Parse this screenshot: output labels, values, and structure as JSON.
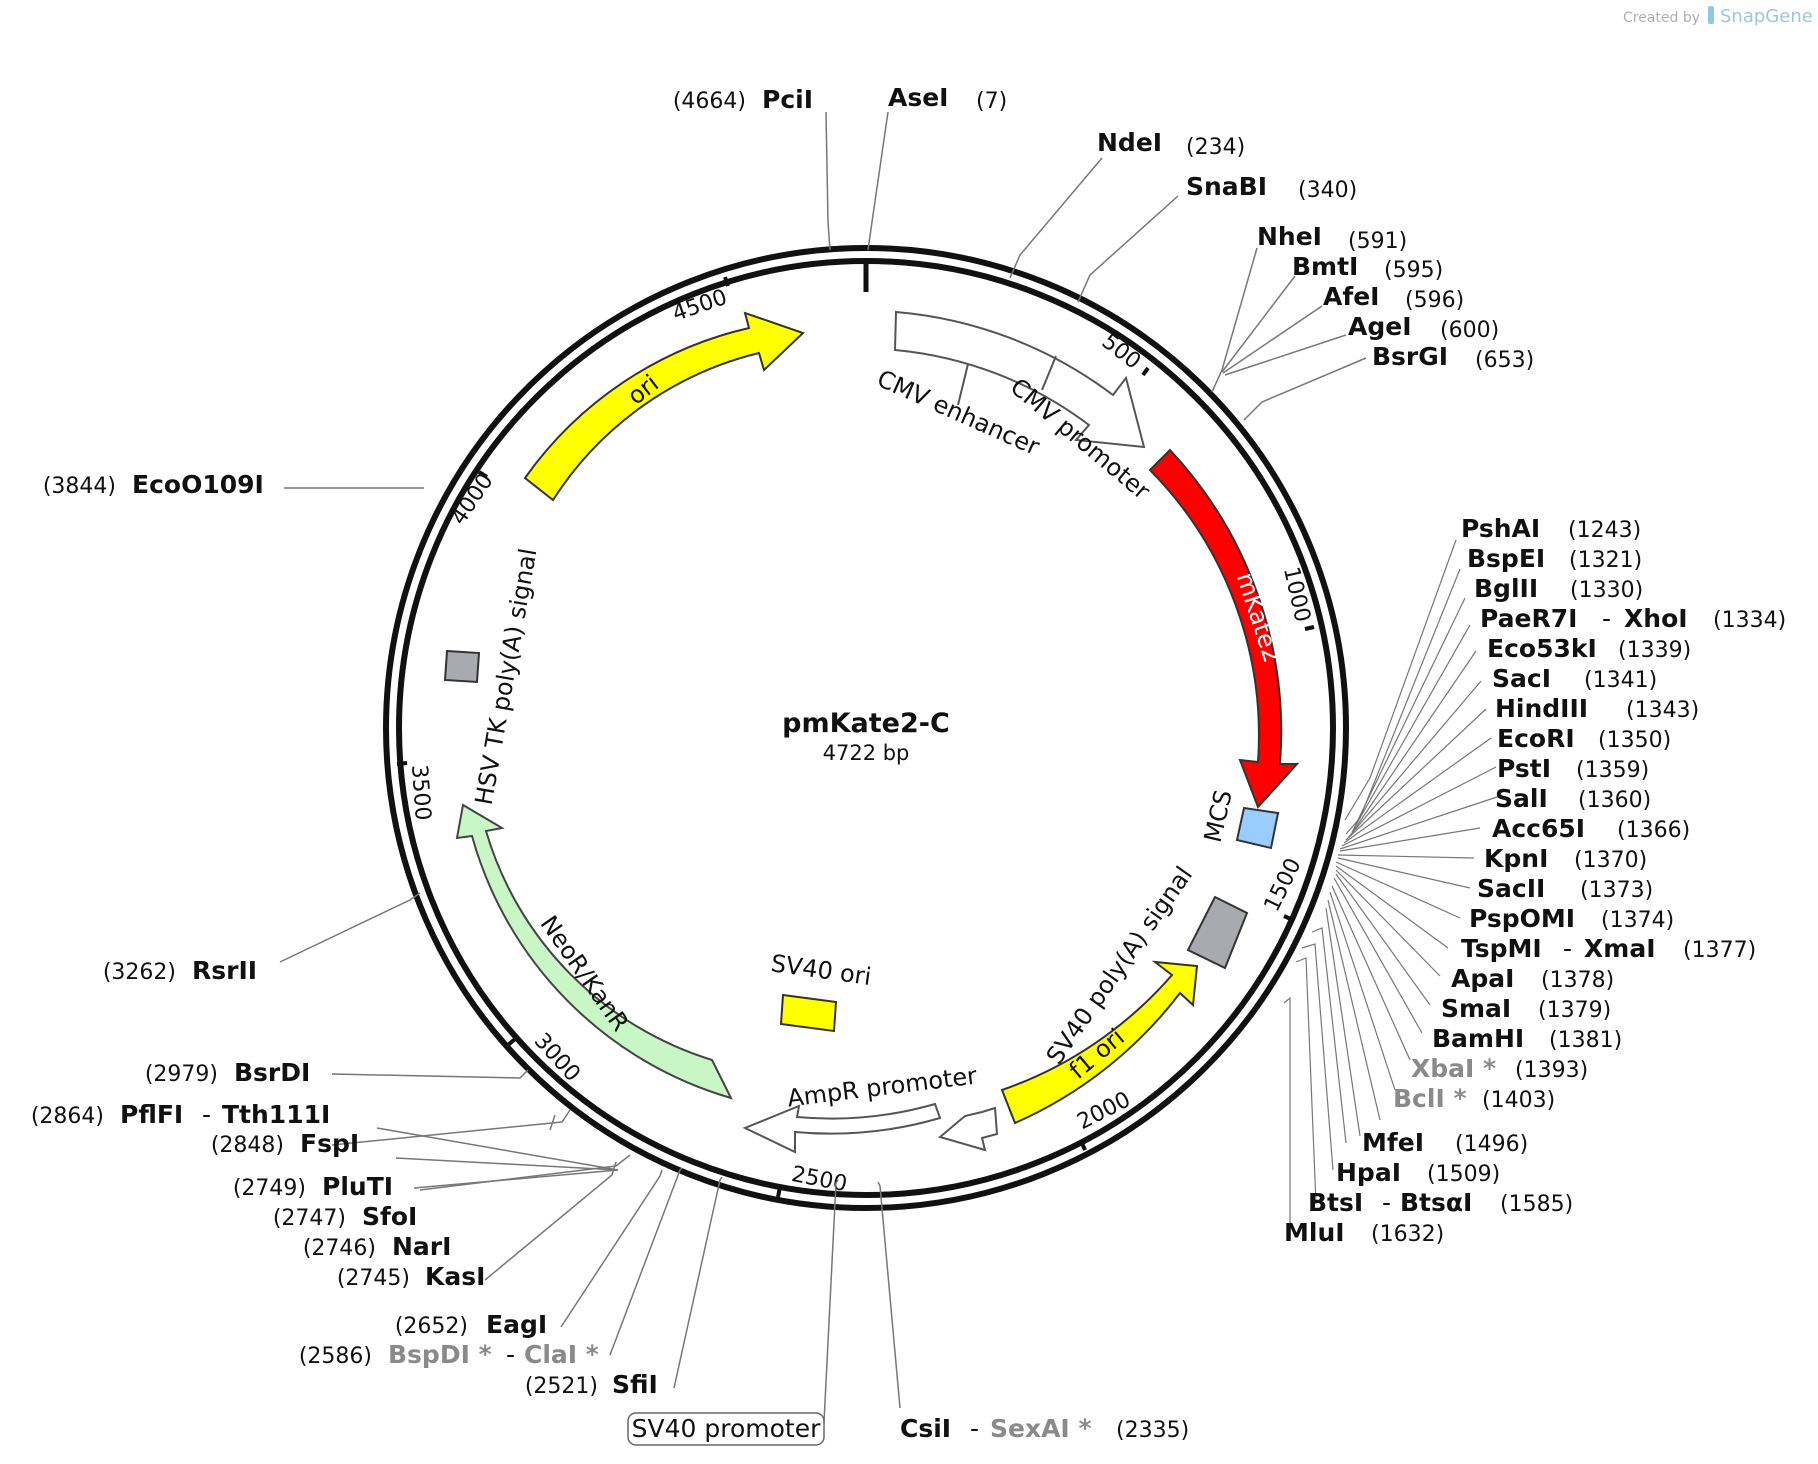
{
  "credit": {
    "prefix": "Created by",
    "brand": "SnapGene"
  },
  "plasmid": {
    "name": "pmKate2-C",
    "size_label": "4722 bp",
    "length_bp": 4722
  },
  "ticks": [
    "500",
    "1000",
    "1500",
    "2000",
    "2500",
    "3000",
    "3500",
    "4000",
    "4500"
  ],
  "features": [
    {
      "id": "cmv-enhancer",
      "label": "CMV enhancer",
      "color": "#ffffff"
    },
    {
      "id": "cmv-promoter",
      "label": "CMV promoter",
      "color": "#ffffff"
    },
    {
      "id": "mkate2",
      "label": "mKate2",
      "color": "#ff0000"
    },
    {
      "id": "mcs",
      "label": "MCS",
      "color": "#99ccff"
    },
    {
      "id": "sv40-polya",
      "label": "SV40 poly(A) signal",
      "color": "#a9a9b0"
    },
    {
      "id": "f1-ori",
      "label": "f1 ori",
      "color": "#ffff00"
    },
    {
      "id": "ampr-promoter",
      "label": "AmpR promoter",
      "color": "#ffffff"
    },
    {
      "id": "sv40-promoter",
      "label": "SV40 promoter",
      "color": "#ffffff"
    },
    {
      "id": "sv40-ori",
      "label": "SV40 ori",
      "color": "#ffff00"
    },
    {
      "id": "neor",
      "label": "NeoR/KanR",
      "color": "#c8f7c5"
    },
    {
      "id": "hsv-polya",
      "label": "HSV TK poly(A) signal",
      "color": "#a9a9b0"
    },
    {
      "id": "ori",
      "label": "ori",
      "color": "#ffff00"
    }
  ],
  "sites": [
    {
      "id": "pcii",
      "pos": "(4664)",
      "enzymes": [
        {
          "name": "PciI"
        }
      ]
    },
    {
      "id": "asei",
      "pos": "(7)",
      "enzymes": [
        {
          "name": "AseI"
        }
      ]
    },
    {
      "id": "ndei",
      "pos": "(234)",
      "enzymes": [
        {
          "name": "NdeI"
        }
      ]
    },
    {
      "id": "snabi",
      "pos": "(340)",
      "enzymes": [
        {
          "name": "SnaBI"
        }
      ]
    },
    {
      "id": "nhei",
      "pos": "(591)",
      "enzymes": [
        {
          "name": "NheI"
        }
      ]
    },
    {
      "id": "bmti",
      "pos": "(595)",
      "enzymes": [
        {
          "name": "BmtI"
        }
      ]
    },
    {
      "id": "afei",
      "pos": "(596)",
      "enzymes": [
        {
          "name": "AfeI"
        }
      ]
    },
    {
      "id": "agei",
      "pos": "(600)",
      "enzymes": [
        {
          "name": "AgeI"
        }
      ]
    },
    {
      "id": "bsrgi",
      "pos": "(653)",
      "enzymes": [
        {
          "name": "BsrGI"
        }
      ]
    },
    {
      "id": "pshai",
      "pos": "(1243)",
      "enzymes": [
        {
          "name": "PshAI"
        }
      ]
    },
    {
      "id": "bspei",
      "pos": "(1321)",
      "enzymes": [
        {
          "name": "BspEI"
        }
      ]
    },
    {
      "id": "bglii",
      "pos": "(1330)",
      "enzymes": [
        {
          "name": "BglII"
        }
      ]
    },
    {
      "id": "paer7i",
      "pos": "(1334)",
      "enzymes": [
        {
          "name": "PaeR7I"
        },
        {
          "name": "XhoI"
        }
      ]
    },
    {
      "id": "eco53ki",
      "pos": "(1339)",
      "enzymes": [
        {
          "name": "Eco53kI"
        }
      ]
    },
    {
      "id": "saci",
      "pos": "(1341)",
      "enzymes": [
        {
          "name": "SacI"
        }
      ]
    },
    {
      "id": "hindiii",
      "pos": "(1343)",
      "enzymes": [
        {
          "name": "HindIII"
        }
      ]
    },
    {
      "id": "ecori",
      "pos": "(1350)",
      "enzymes": [
        {
          "name": "EcoRI"
        }
      ]
    },
    {
      "id": "psti",
      "pos": "(1359)",
      "enzymes": [
        {
          "name": "PstI"
        }
      ]
    },
    {
      "id": "sali",
      "pos": "(1360)",
      "enzymes": [
        {
          "name": "SalI"
        }
      ]
    },
    {
      "id": "acc65i",
      "pos": "(1366)",
      "enzymes": [
        {
          "name": "Acc65I"
        }
      ]
    },
    {
      "id": "kpni",
      "pos": "(1370)",
      "enzymes": [
        {
          "name": "KpnI"
        }
      ]
    },
    {
      "id": "sacii",
      "pos": "(1373)",
      "enzymes": [
        {
          "name": "SacII"
        }
      ]
    },
    {
      "id": "pspomi",
      "pos": "(1374)",
      "enzymes": [
        {
          "name": "PspOMI"
        }
      ]
    },
    {
      "id": "tspmi",
      "pos": "(1377)",
      "enzymes": [
        {
          "name": "TspMI"
        },
        {
          "name": "XmaI"
        }
      ]
    },
    {
      "id": "apai",
      "pos": "(1378)",
      "enzymes": [
        {
          "name": "ApaI"
        }
      ]
    },
    {
      "id": "smai",
      "pos": "(1379)",
      "enzymes": [
        {
          "name": "SmaI"
        }
      ]
    },
    {
      "id": "bamhi",
      "pos": "(1381)",
      "enzymes": [
        {
          "name": "BamHI"
        }
      ]
    },
    {
      "id": "xbai",
      "pos": "(1393)",
      "enzymes": [
        {
          "name": "XbaI *",
          "blocked": true
        }
      ]
    },
    {
      "id": "bcli",
      "pos": "(1403)",
      "enzymes": [
        {
          "name": "BclI *",
          "blocked": true
        }
      ]
    },
    {
      "id": "mfei",
      "pos": "(1496)",
      "enzymes": [
        {
          "name": "MfeI"
        }
      ]
    },
    {
      "id": "hpai",
      "pos": "(1509)",
      "enzymes": [
        {
          "name": "HpaI"
        }
      ]
    },
    {
      "id": "btsi",
      "pos": "(1585)",
      "enzymes": [
        {
          "name": "BtsI"
        },
        {
          "name": "BtsαI"
        }
      ]
    },
    {
      "id": "mlui",
      "pos": "(1632)",
      "enzymes": [
        {
          "name": "MluI"
        }
      ]
    },
    {
      "id": "csii",
      "pos": "(2335)",
      "enzymes": [
        {
          "name": "CsiI"
        },
        {
          "name": "SexAI *",
          "blocked": true
        }
      ]
    },
    {
      "id": "sfii",
      "pos": "(2521)",
      "enzymes": [
        {
          "name": "SfiI"
        }
      ]
    },
    {
      "id": "bspdi",
      "pos": "(2586)",
      "enzymes": [
        {
          "name": "BspDI *",
          "blocked": true
        },
        {
          "name": "ClaI *",
          "blocked": true
        }
      ]
    },
    {
      "id": "eagi",
      "pos": "(2652)",
      "enzymes": [
        {
          "name": "EagI"
        }
      ]
    },
    {
      "id": "kasi",
      "pos": "(2745)",
      "enzymes": [
        {
          "name": "KasI"
        }
      ]
    },
    {
      "id": "nari",
      "pos": "(2746)",
      "enzymes": [
        {
          "name": "NarI"
        }
      ]
    },
    {
      "id": "sfoi",
      "pos": "(2747)",
      "enzymes": [
        {
          "name": "SfoI"
        }
      ]
    },
    {
      "id": "pluti",
      "pos": "(2749)",
      "enzymes": [
        {
          "name": "PluTI"
        }
      ]
    },
    {
      "id": "fspi",
      "pos": "(2848)",
      "enzymes": [
        {
          "name": "FspI"
        }
      ]
    },
    {
      "id": "pflfi",
      "pos": "(2864)",
      "enzymes": [
        {
          "name": "PflFI"
        },
        {
          "name": "Tth111I"
        }
      ]
    },
    {
      "id": "bsrdi",
      "pos": "(2979)",
      "enzymes": [
        {
          "name": "BsrDI"
        }
      ]
    },
    {
      "id": "rsrii",
      "pos": "(3262)",
      "enzymes": [
        {
          "name": "RsrII"
        }
      ]
    },
    {
      "id": "eco0109i",
      "pos": "(3844)",
      "enzymes": [
        {
          "name": "EcoO109I"
        }
      ]
    }
  ]
}
